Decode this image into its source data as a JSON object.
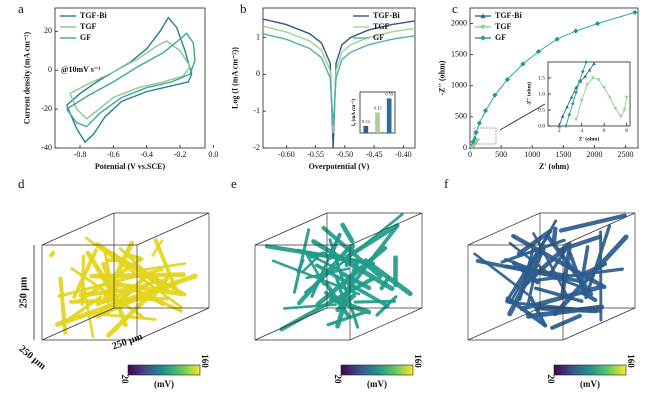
{
  "chart_data": [
    {
      "type": "line",
      "panel_label": "a",
      "xlabel": "Potential (V vs.SCE)",
      "ylabel": "Current density (mA cm⁻²)",
      "annotation": "@10mV s⁻¹",
      "legend": "upper left",
      "xlim": [
        -0.95,
        -0.05
      ],
      "xticks": [
        -0.8,
        -0.6,
        -0.4,
        -0.2,
        {
          "value": 0,
          "label": "0.0"
        }
      ],
      "ylim": [
        -40,
        32
      ],
      "yticks": [
        -40,
        -20,
        0,
        20
      ],
      "series": [
        {
          "name": "TGF-Bi",
          "color": "#2a7f8a",
          "x": [
            -0.88,
            -0.8,
            -0.7,
            -0.6,
            -0.5,
            -0.4,
            -0.32,
            -0.27,
            -0.22,
            -0.17,
            -0.13,
            -0.15,
            -0.25,
            -0.4,
            -0.55,
            -0.65,
            -0.72,
            -0.77,
            -0.82,
            -0.86,
            -0.88
          ],
          "values": [
            -18,
            -12,
            -6,
            -1,
            4,
            11,
            20,
            27,
            22,
            10,
            -2,
            -6,
            -8,
            -11,
            -16,
            -24,
            -33,
            -37,
            -30,
            -22,
            -18
          ]
        },
        {
          "name": "TGF",
          "color": "#8cc98a",
          "x": [
            -0.86,
            -0.75,
            -0.6,
            -0.45,
            -0.33,
            -0.28,
            -0.2,
            -0.14,
            -0.18,
            -0.3,
            -0.45,
            -0.6,
            -0.7,
            -0.76,
            -0.82,
            -0.86
          ],
          "values": [
            -12,
            -7,
            -1,
            6,
            13,
            15,
            10,
            2,
            -3,
            -6,
            -9,
            -14,
            -21,
            -25,
            -20,
            -12
          ]
        },
        {
          "name": "GF",
          "color": "#3aa89a",
          "x": [
            -0.88,
            -0.75,
            -0.6,
            -0.45,
            -0.3,
            -0.2,
            -0.16,
            -0.12,
            -0.11,
            -0.14,
            -0.25,
            -0.4,
            -0.55,
            -0.68,
            -0.76,
            -0.82,
            -0.88
          ],
          "values": [
            -20,
            -13,
            -6,
            2,
            9,
            16,
            19,
            14,
            5,
            -2,
            -6,
            -9,
            -14,
            -22,
            -29,
            -27,
            -20
          ]
        }
      ]
    },
    {
      "type": "line",
      "panel_label": "b",
      "xlabel": "Overpotential (V)",
      "ylabel": "Log (I (mA cm⁻²))",
      "legend": "upper right",
      "xlim": [
        -0.64,
        -0.38
      ],
      "xticks": [
        {
          "value": -0.6,
          "label": "-0.60"
        },
        -0.55,
        {
          "value": -0.5,
          "label": "-0.50"
        },
        -0.45,
        {
          "value": -0.4,
          "label": "-0.40"
        }
      ],
      "ylim": [
        -2,
        1.8
      ],
      "yticks": [
        -2,
        -1,
        0,
        1
      ],
      "series": [
        {
          "name": "TGF-Bi",
          "color": "#2e5a87",
          "x": [
            -0.64,
            -0.6,
            -0.56,
            -0.54,
            -0.525,
            -0.52,
            -0.515,
            -0.505,
            -0.49,
            -0.46,
            -0.42,
            -0.38
          ],
          "values": [
            1.5,
            1.35,
            1.1,
            0.85,
            0.3,
            -2,
            0.3,
            0.8,
            1.0,
            1.2,
            1.35,
            1.45
          ]
        },
        {
          "name": "TGF",
          "color": "#a6d28f",
          "x": [
            -0.64,
            -0.6,
            -0.56,
            -0.54,
            -0.525,
            -0.52,
            -0.515,
            -0.505,
            -0.49,
            -0.46,
            -0.42,
            -0.38
          ],
          "values": [
            1.3,
            1.15,
            0.9,
            0.65,
            0.1,
            -1.6,
            0.1,
            0.6,
            0.8,
            1.0,
            1.15,
            1.25
          ]
        },
        {
          "name": "GF",
          "color": "#4fb3a3",
          "x": [
            -0.64,
            -0.6,
            -0.56,
            -0.54,
            -0.525,
            -0.52,
            -0.515,
            -0.505,
            -0.49,
            -0.46,
            -0.42,
            -0.38
          ],
          "values": [
            1.1,
            0.95,
            0.7,
            0.45,
            -0.1,
            -1.4,
            -0.1,
            0.4,
            0.6,
            0.8,
            0.95,
            1.05
          ]
        }
      ]
    },
    {
      "type": "bar",
      "ylabel": "I₀ (mA cm⁻²)",
      "categories": [
        null,
        null,
        null
      ],
      "values": [
        0.12,
        0.35,
        0.59
      ],
      "colors": [
        "#2e5a87",
        "#a6d28f",
        "#2a6fa0"
      ],
      "ylim": [
        0,
        0.7
      ]
    },
    {
      "type": "line",
      "panel_label": "c",
      "xlabel": "Z' (ohm)",
      "ylabel": "-Z'' (ohm)",
      "legend": "upper left",
      "xlim": [
        0,
        2700
      ],
      "xticks": [
        0,
        500,
        1000,
        1500,
        2000,
        2500
      ],
      "ylim": [
        0,
        2250
      ],
      "yticks": [
        0,
        500,
        1000,
        1500,
        2000
      ],
      "series": [
        {
          "name": "TGF-Bi",
          "color": "#2d6d8c",
          "marker": "triangle-up",
          "x": [
            20,
            40,
            60,
            80
          ],
          "values": [
            20,
            60,
            110,
            160
          ]
        },
        {
          "name": "TGF",
          "color": "#8fcf8a",
          "marker": "triangle-down",
          "x": [
            30,
            60,
            90,
            120
          ],
          "values": [
            10,
            40,
            80,
            120
          ]
        },
        {
          "name": "GF",
          "color": "#1c9c8f",
          "marker": "diamond",
          "x": [
            50,
            100,
            150,
            250,
            400,
            600,
            850,
            1100,
            1400,
            1700,
            2050,
            2650
          ],
          "values": [
            100,
            250,
            400,
            600,
            850,
            1100,
            1350,
            1550,
            1750,
            1880,
            2000,
            2180
          ]
        }
      ]
    },
    {
      "type": "line",
      "xlabel": "Z' (ohm)",
      "ylabel": "-Z'' (ohm)",
      "xlim": [
        1,
        8.3
      ],
      "xticks": [
        2,
        4,
        6,
        8
      ],
      "ylim": [
        0,
        2
      ],
      "yticks": [
        {
          "value": 0,
          "label": "0.0"
        },
        0.5,
        {
          "value": 1,
          "label": "1.0"
        },
        1.5
      ],
      "series": [
        {
          "color": "#2d6d8c",
          "marker": "triangle-up",
          "x": [
            2.0,
            2.3,
            2.7,
            3.1,
            3.5,
            3.9,
            4.3,
            4.7,
            5.1
          ],
          "values": [
            0.0,
            0.3,
            0.6,
            0.9,
            1.2,
            1.4,
            1.55,
            1.75,
            1.95
          ]
        },
        {
          "color": "#8fcf8a",
          "marker": "triangle-down",
          "x": [
            3.5,
            4,
            4.5,
            5,
            5.5,
            6,
            6.5,
            7,
            7.5,
            7.8,
            8
          ],
          "values": [
            0.2,
            0.8,
            1.3,
            1.5,
            1.45,
            1.2,
            0.9,
            0.55,
            0.3,
            0.5,
            0.9
          ]
        },
        {
          "color": "#1c9c8f",
          "marker": "diamond",
          "x": [
            2.6,
            2.9,
            3.2,
            3.5,
            3.8,
            4.1,
            4.4
          ],
          "values": [
            0,
            0.35,
            0.7,
            1.05,
            1.4,
            1.7,
            2.0
          ]
        }
      ]
    }
  ],
  "renders": [
    {
      "label": "d",
      "color": "#e3d41d",
      "dims": [
        "250 μm",
        "250 μm",
        "250 μm"
      ],
      "colorbar": {
        "min": 20,
        "max": 160,
        "unit": "(mV)"
      }
    },
    {
      "label": "e",
      "color": "#1f9c8a",
      "colorbar": {
        "min": 20,
        "max": 160,
        "unit": "(mV)"
      }
    },
    {
      "label": "f",
      "color": "#2c5c8e",
      "colorbar": {
        "min": 20,
        "max": 160,
        "unit": "(mV)"
      }
    }
  ]
}
